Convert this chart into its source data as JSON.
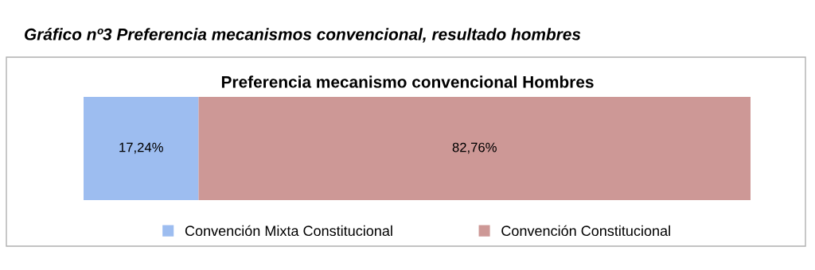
{
  "chart_data": {
    "type": "bar",
    "orientation": "horizontal",
    "stacked": true,
    "title": "Gráfico nº3 Preferencia mecanismos convencional, resultado hombres",
    "subtitle": "Preferencia mecanismo convencional Hombres",
    "categories": [
      null
    ],
    "series": [
      {
        "name": "Convención Mixta Constitucional",
        "color": "#9dbdf0",
        "values": [
          17.24
        ],
        "value_labels": [
          "17,24%"
        ]
      },
      {
        "name": "Convención Constitucional",
        "color": "#cd9896",
        "values": [
          82.76
        ],
        "value_labels": [
          "82,76%"
        ]
      }
    ],
    "xlim": [
      0,
      100
    ],
    "tick_labels": false,
    "grid": false,
    "legend": "bottom"
  }
}
